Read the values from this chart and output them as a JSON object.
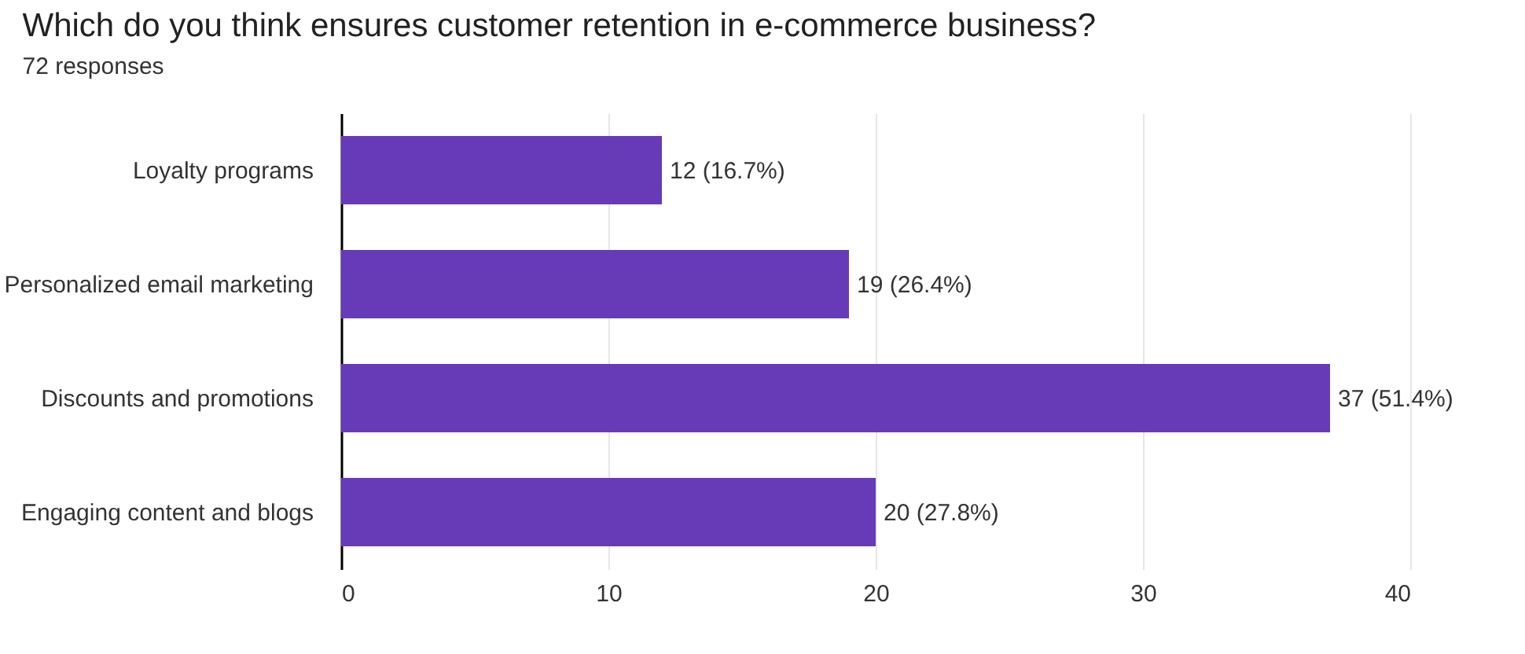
{
  "chart_data": {
    "type": "bar",
    "orientation": "horizontal",
    "title": "Which  do you think ensures customer retention in e-commerce business?",
    "subtitle": "72 responses",
    "categories": [
      "Loyalty programs",
      "Personalized email marketing",
      "Discounts and promotions",
      "Engaging content and blogs"
    ],
    "values": [
      12,
      19,
      37,
      20
    ],
    "color": "#673ab7",
    "value_labels": [
      "12 (16.7%)",
      "19 (26.4%)",
      "37 (51.4%)",
      "20 (27.8%)"
    ],
    "xlim": [
      0,
      40
    ],
    "xticks": [
      0,
      10,
      20,
      30,
      40
    ],
    "grid": "x"
  }
}
